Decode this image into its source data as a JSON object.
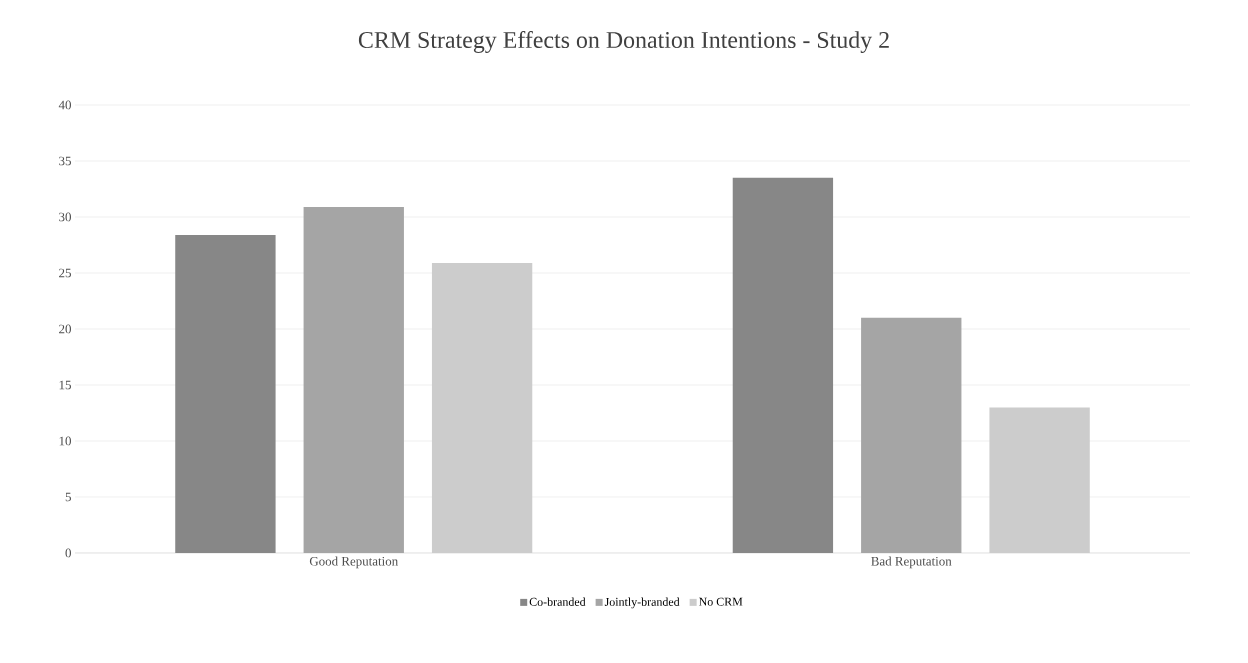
{
  "chart_data": {
    "type": "bar",
    "title": "CRM Strategy Effects on Donation Intentions - Study 2",
    "categories": [
      "Good Reputation",
      "Bad Reputation"
    ],
    "series": [
      {
        "name": "Co-branded",
        "color": "#878787",
        "values": [
          28.4,
          33.5
        ]
      },
      {
        "name": "Jointly-branded",
        "color": "#a5a5a5",
        "values": [
          30.9,
          21.0
        ]
      },
      {
        "name": "No CRM",
        "color": "#cccccc",
        "values": [
          25.9,
          13.0
        ]
      }
    ],
    "ylim": [
      0,
      40
    ],
    "yticks": [
      0,
      5,
      10,
      15,
      20,
      25,
      30,
      35,
      40
    ],
    "grid": "y",
    "legend": "bottom"
  }
}
